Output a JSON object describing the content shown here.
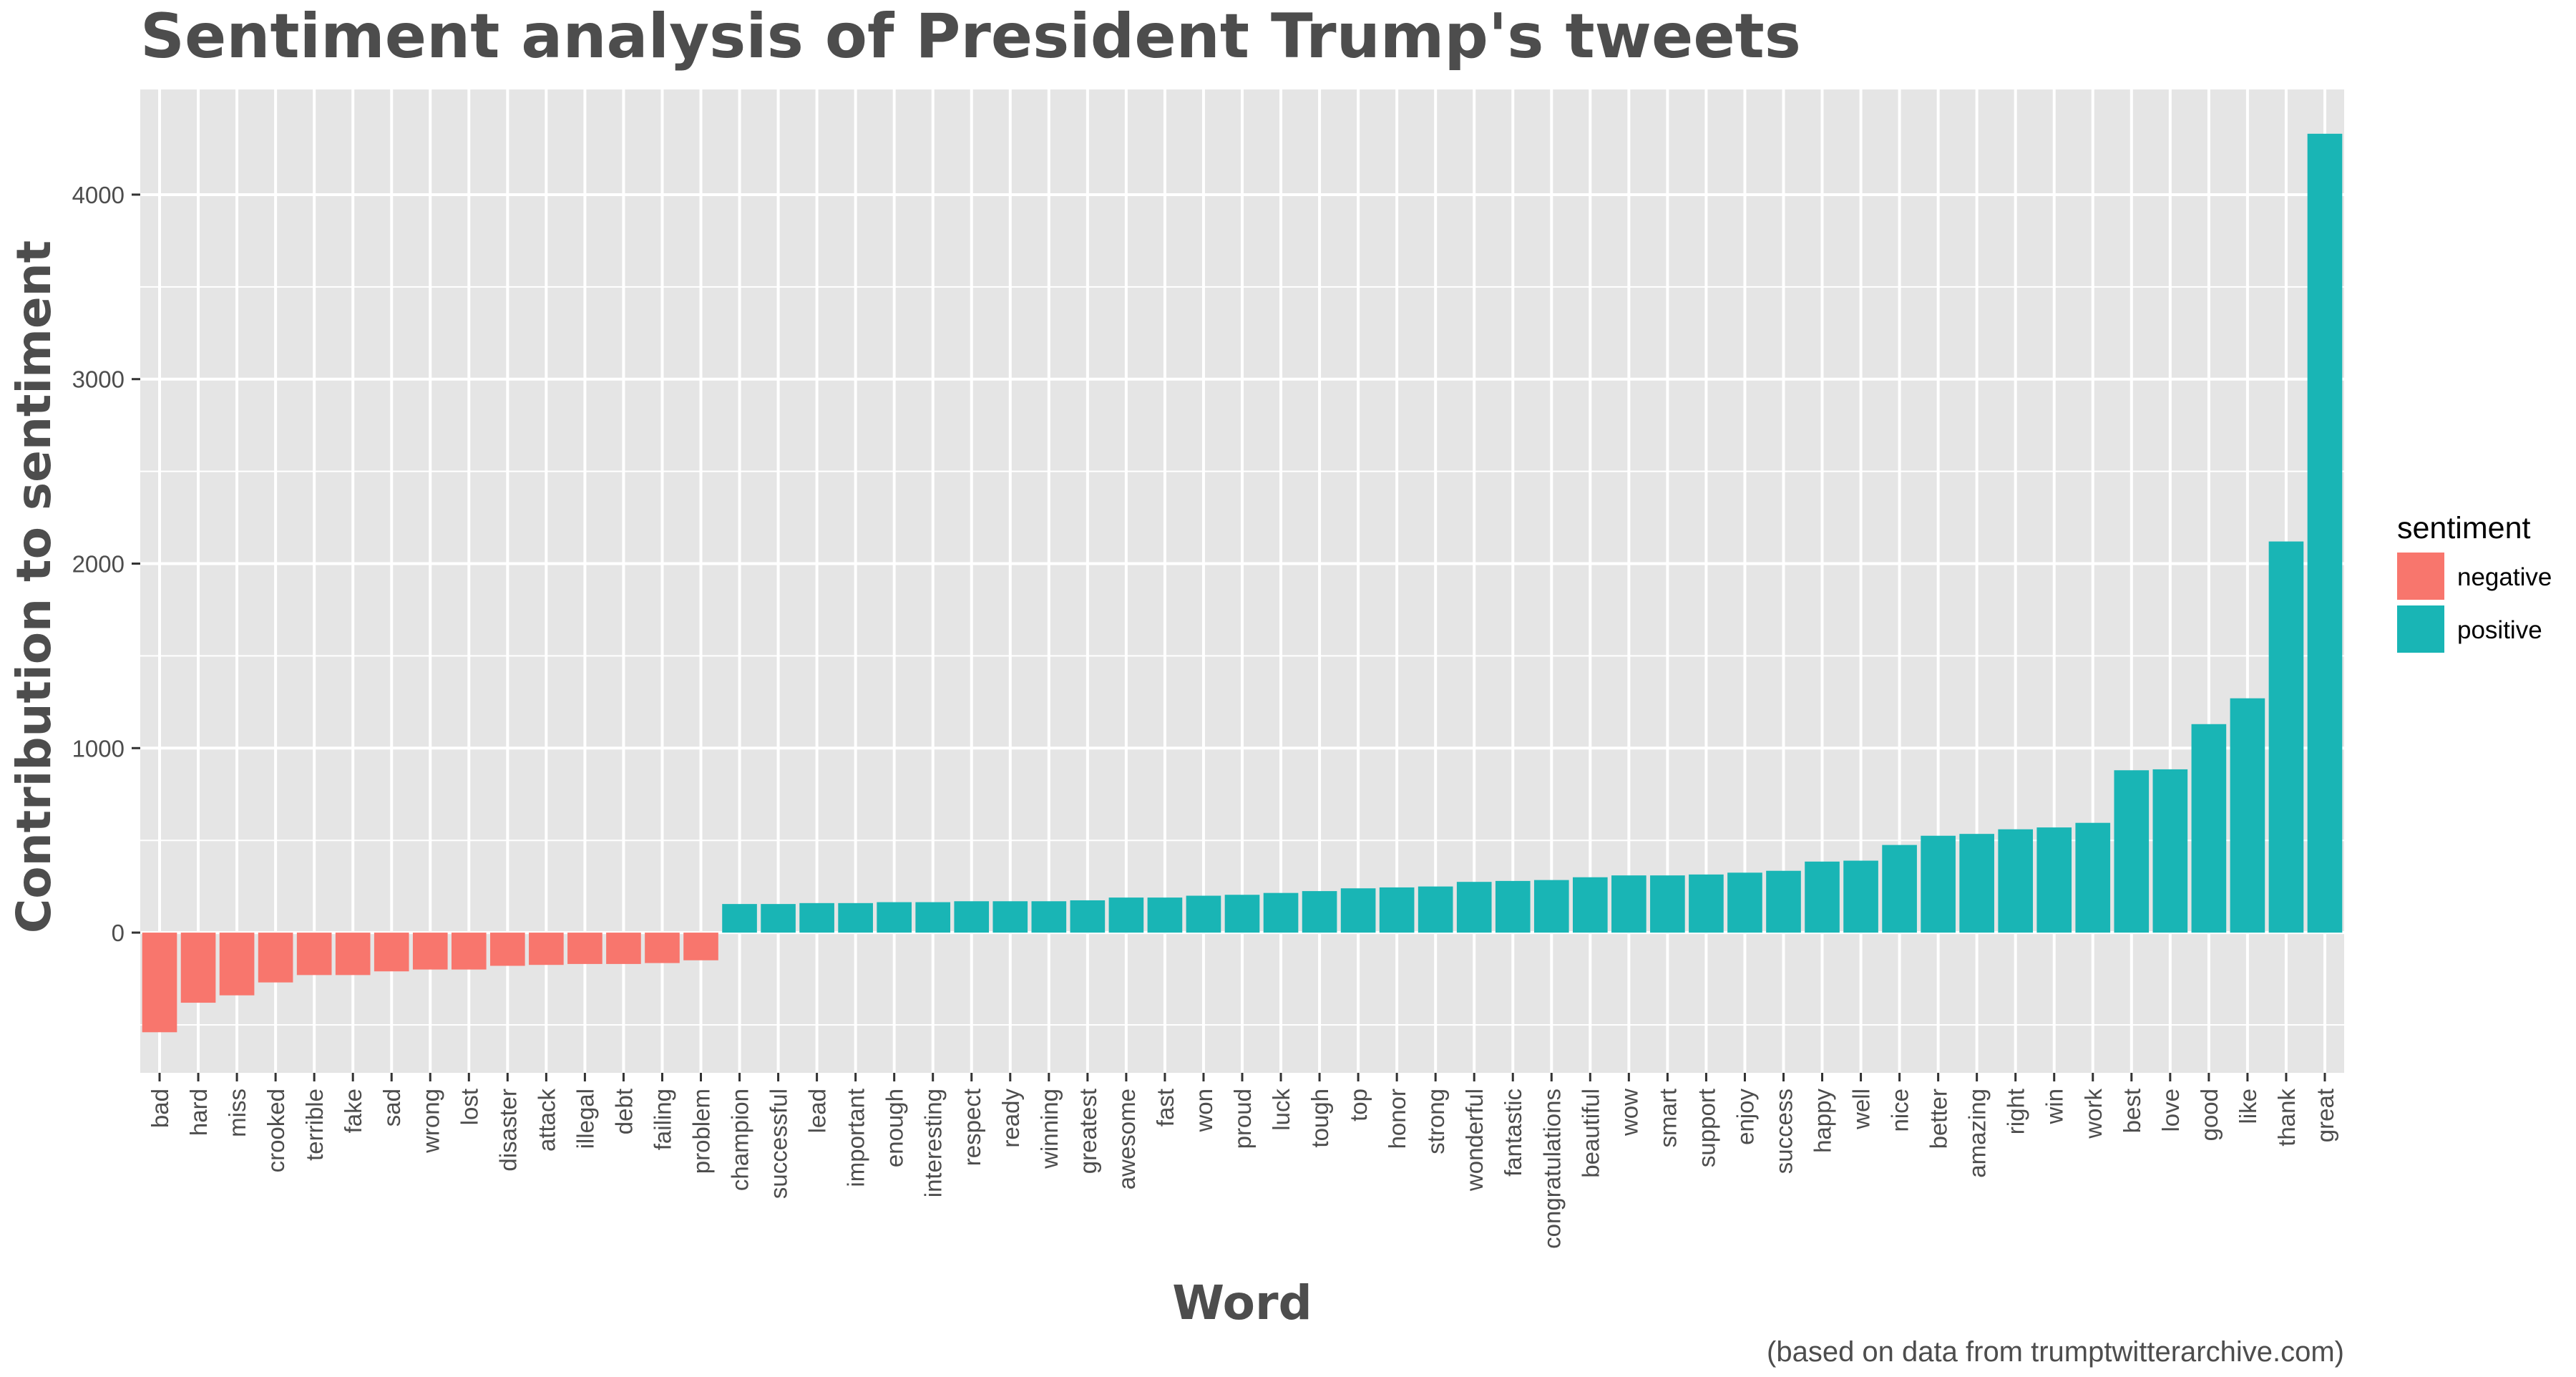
{
  "title": "Sentiment analysis of President Trump's tweets",
  "caption": "(based on data from trumptwitterarchive.com)",
  "colors": {
    "negative": "#F8766D",
    "positive": "#19B5B5",
    "panel_bg": "#E5E5E5",
    "grid": "#FFFFFF",
    "text": "#4D4D4D"
  },
  "legend": {
    "title": "sentiment",
    "items": [
      {
        "label": "negative",
        "key": "negative"
      },
      {
        "label": "positive",
        "key": "positive"
      }
    ]
  },
  "chart_data": {
    "type": "bar",
    "xlabel": "Word",
    "ylabel": "Contribution to sentiment",
    "ylim": [
      -760,
      4570
    ],
    "yticks": [
      0,
      1000,
      2000,
      3000,
      4000
    ],
    "grid": true,
    "legend_position": "right",
    "categories": [
      "bad",
      "hard",
      "miss",
      "crooked",
      "terrible",
      "fake",
      "sad",
      "wrong",
      "lost",
      "disaster",
      "attack",
      "illegal",
      "debt",
      "failing",
      "problem",
      "champion",
      "successful",
      "lead",
      "important",
      "enough",
      "interesting",
      "respect",
      "ready",
      "winning",
      "greatest",
      "awesome",
      "fast",
      "won",
      "proud",
      "luck",
      "tough",
      "top",
      "honor",
      "strong",
      "wonderful",
      "fantastic",
      "congratulations",
      "beautiful",
      "wow",
      "smart",
      "support",
      "enjoy",
      "success",
      "happy",
      "well",
      "nice",
      "better",
      "amazing",
      "right",
      "win",
      "work",
      "best",
      "love",
      "good",
      "like",
      "thank",
      "great"
    ],
    "values": [
      -540,
      -380,
      -340,
      -270,
      -230,
      -230,
      -210,
      -200,
      -200,
      -180,
      -175,
      -170,
      -170,
      -165,
      -150,
      155,
      155,
      160,
      160,
      165,
      165,
      170,
      170,
      170,
      175,
      190,
      190,
      200,
      205,
      215,
      225,
      240,
      245,
      250,
      275,
      280,
      285,
      300,
      310,
      310,
      315,
      325,
      335,
      385,
      390,
      475,
      525,
      535,
      560,
      570,
      595,
      880,
      885,
      1130,
      1270,
      2120,
      4330
    ],
    "sentiment": [
      "negative",
      "negative",
      "negative",
      "negative",
      "negative",
      "negative",
      "negative",
      "negative",
      "negative",
      "negative",
      "negative",
      "negative",
      "negative",
      "negative",
      "negative",
      "positive",
      "positive",
      "positive",
      "positive",
      "positive",
      "positive",
      "positive",
      "positive",
      "positive",
      "positive",
      "positive",
      "positive",
      "positive",
      "positive",
      "positive",
      "positive",
      "positive",
      "positive",
      "positive",
      "positive",
      "positive",
      "positive",
      "positive",
      "positive",
      "positive",
      "positive",
      "positive",
      "positive",
      "positive",
      "positive",
      "positive",
      "positive",
      "positive",
      "positive",
      "positive",
      "positive",
      "positive",
      "positive",
      "positive",
      "positive",
      "positive",
      "positive"
    ]
  }
}
